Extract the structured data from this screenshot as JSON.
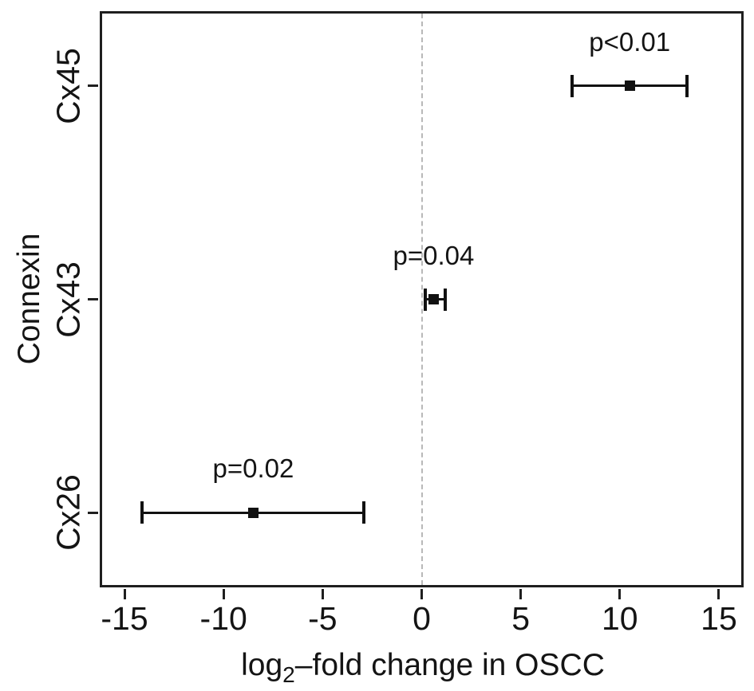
{
  "figure": {
    "background_color": "#ffffff",
    "axis_color": "#1f1f1f",
    "data_color": "#111111",
    "zero_line_color": "#b8b8b8"
  },
  "chart_data": {
    "type": "scatter",
    "subtype": "forest-errorbar-horizontal",
    "title": "",
    "xlabel": "log2–fold change in OSCC",
    "xlabel_parts": {
      "prefix": "log",
      "subscript": "2",
      "suffix": "–fold change in OSCC"
    },
    "ylabel": "Connexin",
    "xlim": [
      -16.25,
      16.25
    ],
    "ylim": [
      0.65,
      3.35
    ],
    "x_ticks": [
      -15,
      -10,
      -5,
      0,
      5,
      10,
      15
    ],
    "x_tick_labels": [
      "-15",
      "-10",
      "-5",
      "0",
      "5",
      "10",
      "15"
    ],
    "zero_reference_line": {
      "x": 0,
      "style": "dashed"
    },
    "grid": false,
    "legend": false,
    "marker": "filled-square",
    "series": [
      {
        "category": "Cx45",
        "y": 3,
        "estimate": 10.5,
        "ci_low": 7.6,
        "ci_high": 13.4,
        "p_label": "p<0.01"
      },
      {
        "category": "Cx43",
        "y": 2,
        "estimate": 0.6,
        "ci_low": 0.2,
        "ci_high": 1.2,
        "p_label": "p=0.04"
      },
      {
        "category": "Cx26",
        "y": 1,
        "estimate": -8.5,
        "ci_low": -14.1,
        "ci_high": -2.9,
        "p_label": "p=0.02"
      }
    ]
  }
}
